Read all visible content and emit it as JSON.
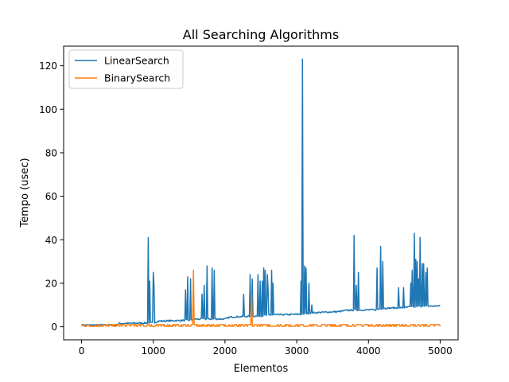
{
  "chart_data": {
    "type": "line",
    "title": "All Searching Algorithms",
    "xlabel": "Elementos",
    "ylabel": "Tempo (usec)",
    "xlim": [
      -250,
      5250
    ],
    "ylim": [
      -6,
      129
    ],
    "xticks": [
      0,
      1000,
      2000,
      3000,
      4000,
      5000
    ],
    "yticks": [
      0,
      20,
      40,
      60,
      80,
      100,
      120
    ],
    "grid": false,
    "legend_position": "top-left",
    "series": [
      {
        "name": "LinearSearch",
        "color": "#1f77b4",
        "baseline": [
          [
            0,
            0.8
          ],
          [
            500,
            0.8
          ],
          [
            520,
            1.5
          ],
          [
            1000,
            1.8
          ],
          [
            1080,
            2.6
          ],
          [
            1500,
            3.0
          ],
          [
            1560,
            3.5
          ],
          [
            2000,
            3.6
          ],
          [
            2080,
            4.5
          ],
          [
            2500,
            5.0
          ],
          [
            2600,
            5.4
          ],
          [
            3100,
            5.8
          ],
          [
            3200,
            6.4
          ],
          [
            3600,
            7.0
          ],
          [
            3700,
            7.6
          ],
          [
            4100,
            7.8
          ],
          [
            4200,
            8.5
          ],
          [
            4500,
            8.8
          ],
          [
            4600,
            9.2
          ],
          [
            5000,
            9.6
          ]
        ],
        "spikes": [
          [
            930,
            41
          ],
          [
            950,
            21
          ],
          [
            1000,
            25
          ],
          [
            1010,
            19
          ],
          [
            1450,
            17
          ],
          [
            1480,
            23
          ],
          [
            1520,
            22
          ],
          [
            1680,
            15
          ],
          [
            1710,
            19
          ],
          [
            1750,
            28
          ],
          [
            1820,
            27
          ],
          [
            1850,
            26
          ],
          [
            2260,
            15
          ],
          [
            2350,
            24
          ],
          [
            2380,
            22
          ],
          [
            2460,
            24
          ],
          [
            2490,
            21
          ],
          [
            2520,
            21
          ],
          [
            2540,
            27
          ],
          [
            2560,
            26
          ],
          [
            2590,
            24
          ],
          [
            2600,
            18
          ],
          [
            2650,
            26
          ],
          [
            2670,
            20
          ],
          [
            3060,
            21
          ],
          [
            3075,
            123
          ],
          [
            3110,
            28
          ],
          [
            3130,
            27
          ],
          [
            3170,
            20
          ],
          [
            3210,
            10
          ],
          [
            3800,
            42
          ],
          [
            3830,
            19
          ],
          [
            3860,
            25
          ],
          [
            4120,
            27
          ],
          [
            4170,
            37
          ],
          [
            4200,
            30
          ],
          [
            4420,
            18
          ],
          [
            4490,
            18
          ],
          [
            4590,
            20
          ],
          [
            4610,
            26
          ],
          [
            4640,
            43
          ],
          [
            4660,
            31
          ],
          [
            4680,
            30
          ],
          [
            4700,
            22
          ],
          [
            4720,
            41
          ],
          [
            4750,
            29
          ],
          [
            4770,
            29
          ],
          [
            4800,
            25
          ],
          [
            4820,
            27
          ]
        ]
      },
      {
        "name": "BinarySearch",
        "color": "#ff7f0e",
        "baseline": [
          [
            0,
            0.6
          ],
          [
            5000,
            0.6
          ]
        ],
        "spikes": [
          [
            1560,
            26
          ],
          [
            2370,
            15
          ]
        ]
      }
    ]
  }
}
